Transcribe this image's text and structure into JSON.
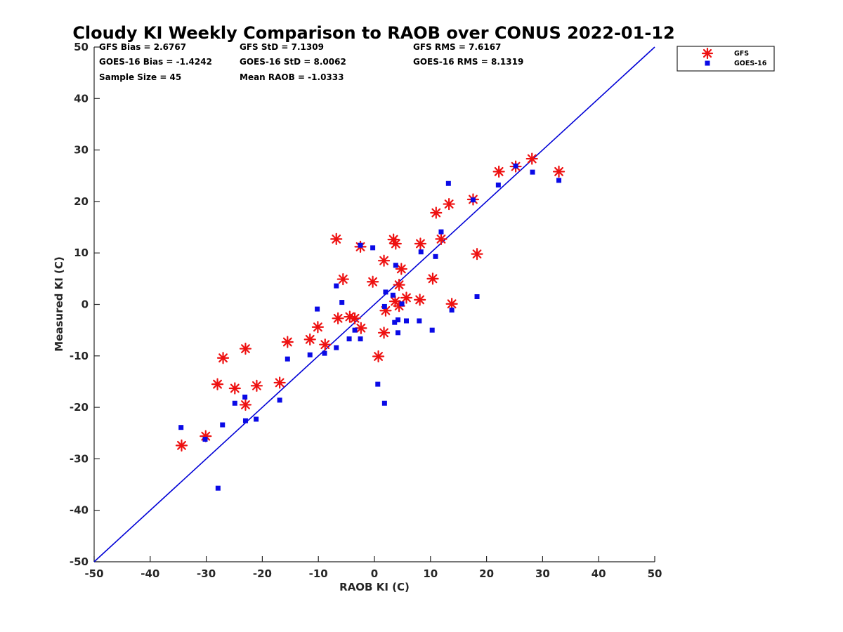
{
  "chart_data": {
    "type": "scatter",
    "title": "Cloudy KI Weekly Comparison to RAOB over CONUS 2022-01-12",
    "xlabel": "RAOB KI (C)",
    "ylabel": "Measured KI (C)",
    "xlim": [
      -50,
      50
    ],
    "ylim": [
      -50,
      50
    ],
    "xticks": [
      "-50",
      "-40",
      "-30",
      "-20",
      "-10",
      "0",
      "10",
      "20",
      "30",
      "40",
      "50"
    ],
    "yticks": [
      "50",
      "40",
      "30",
      "20",
      "10",
      "0",
      "-10",
      "-20",
      "-30",
      "-40",
      "-50"
    ],
    "grid": false,
    "legend_position": "outside-top-right",
    "reference_line": {
      "from": [
        -50,
        -50
      ],
      "to": [
        50,
        50
      ],
      "color": "#0000d6"
    },
    "stats": {
      "gfs_bias": "GFS Bias = 2.6767",
      "gfs_std": "GFS StD = 7.1309",
      "gfs_rms": "GFS RMS = 7.6167",
      "goes_bias": "GOES-16 Bias = -1.4242",
      "goes_std": "GOES-16 StD = 8.0062",
      "goes_rms": "GOES-16 RMS = 8.1319",
      "sample_size": "Sample Size = 45",
      "mean_raob": "Mean RAOB = -1.0333"
    },
    "series": [
      {
        "name": "GFS",
        "marker": "asterisk",
        "color": "#ee1111",
        "points": [
          [
            -34.4,
            -27.4
          ],
          [
            -30.1,
            -25.6
          ],
          [
            -28.0,
            -15.5
          ],
          [
            -27.0,
            -10.4
          ],
          [
            -24.9,
            -16.3
          ],
          [
            -23.0,
            -8.6
          ],
          [
            -23.0,
            -19.5
          ],
          [
            -21.0,
            -15.8
          ],
          [
            -16.9,
            -15.2
          ],
          [
            -15.5,
            -7.3
          ],
          [
            -11.5,
            -6.8
          ],
          [
            -10.1,
            -4.4
          ],
          [
            -8.8,
            -7.8
          ],
          [
            -6.8,
            12.7
          ],
          [
            -6.5,
            -2.7
          ],
          [
            -5.6,
            4.9
          ],
          [
            -4.4,
            -2.4
          ],
          [
            -3.5,
            -2.7
          ],
          [
            -2.4,
            -4.6
          ],
          [
            -2.5,
            11.2
          ],
          [
            -0.3,
            4.4
          ],
          [
            0.7,
            -10.1
          ],
          [
            1.7,
            8.5
          ],
          [
            1.7,
            -5.5
          ],
          [
            2.0,
            -1.2
          ],
          [
            3.4,
            12.6
          ],
          [
            3.8,
            11.8
          ],
          [
            3.7,
            0.6
          ],
          [
            4.4,
            -0.3
          ],
          [
            4.4,
            3.8
          ],
          [
            4.8,
            6.9
          ],
          [
            5.7,
            1.3
          ],
          [
            8.1,
            0.9
          ],
          [
            8.2,
            11.8
          ],
          [
            10.4,
            5.0
          ],
          [
            11.0,
            17.8
          ],
          [
            11.9,
            12.7
          ],
          [
            13.3,
            19.5
          ],
          [
            13.8,
            0.1
          ],
          [
            17.6,
            20.4
          ],
          [
            18.3,
            9.8
          ],
          [
            22.2,
            25.8
          ],
          [
            25.2,
            26.8
          ],
          [
            28.1,
            28.3
          ],
          [
            32.9,
            25.8
          ]
        ]
      },
      {
        "name": "GOES-16",
        "marker": "square",
        "color": "#0a0ae6",
        "points": [
          [
            -34.5,
            -23.9
          ],
          [
            -30.2,
            -26.2
          ],
          [
            -27.9,
            -35.7
          ],
          [
            -27.1,
            -23.4
          ],
          [
            -24.9,
            -19.2
          ],
          [
            -23.1,
            -18.0
          ],
          [
            -23.0,
            -22.6
          ],
          [
            -21.1,
            -22.3
          ],
          [
            -16.9,
            -18.6
          ],
          [
            -15.5,
            -10.6
          ],
          [
            -11.5,
            -9.8
          ],
          [
            -10.2,
            -0.9
          ],
          [
            -8.9,
            -9.5
          ],
          [
            -6.8,
            -8.4
          ],
          [
            -6.8,
            3.6
          ],
          [
            -5.8,
            0.4
          ],
          [
            -4.5,
            -6.7
          ],
          [
            -3.5,
            -5.0
          ],
          [
            -2.5,
            -6.7
          ],
          [
            -2.5,
            11.5
          ],
          [
            -0.3,
            11.0
          ],
          [
            0.6,
            -15.5
          ],
          [
            1.8,
            -19.2
          ],
          [
            1.8,
            -0.4
          ],
          [
            2.0,
            2.4
          ],
          [
            3.3,
            1.8
          ],
          [
            3.6,
            -3.5
          ],
          [
            3.8,
            7.6
          ],
          [
            4.2,
            -3.0
          ],
          [
            4.2,
            -5.5
          ],
          [
            4.9,
            0.1
          ],
          [
            5.7,
            -3.2
          ],
          [
            8.0,
            -3.2
          ],
          [
            8.3,
            10.2
          ],
          [
            10.3,
            -5.0
          ],
          [
            10.9,
            9.3
          ],
          [
            11.9,
            14.1
          ],
          [
            13.2,
            23.5
          ],
          [
            13.8,
            -1.1
          ],
          [
            17.6,
            20.3
          ],
          [
            18.3,
            1.5
          ],
          [
            22.1,
            23.2
          ],
          [
            25.2,
            26.9
          ],
          [
            28.2,
            25.7
          ],
          [
            32.9,
            24.1
          ]
        ]
      }
    ]
  }
}
